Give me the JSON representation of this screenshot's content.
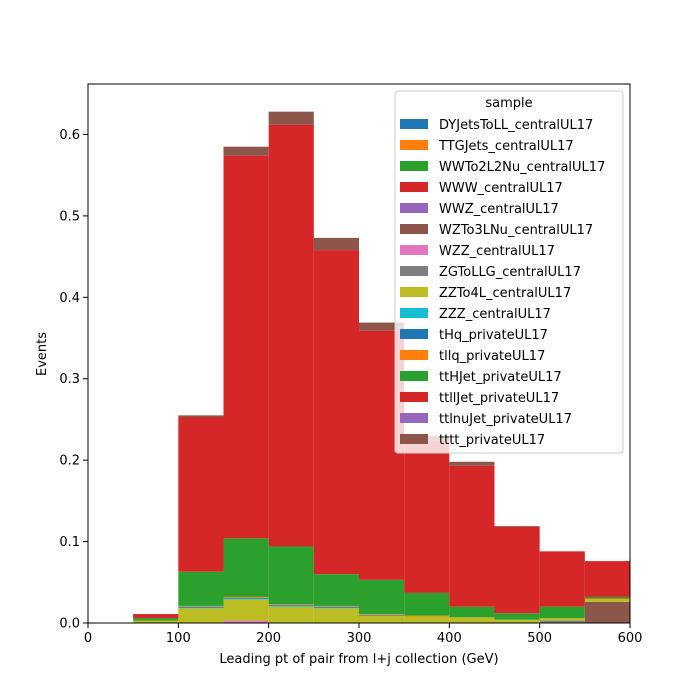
{
  "chart_data": {
    "type": "bar",
    "stacked": true,
    "histogram": true,
    "xlabel": "Leading pt of pair from l+j collection (GeV)",
    "ylabel": "Events",
    "xlim": [
      0,
      600
    ],
    "ylim": [
      0,
      0.662
    ],
    "xticks": [
      "0",
      "100",
      "200",
      "300",
      "400",
      "500",
      "600"
    ],
    "yticks": [
      "0.0",
      "0.1",
      "0.2",
      "0.3",
      "0.4",
      "0.5",
      "0.6"
    ],
    "grid": false,
    "legend_title": "sample",
    "legend_position": "top-right",
    "bin_edges": [
      50,
      100,
      150,
      200,
      250,
      300,
      350,
      400,
      450,
      500,
      550,
      600
    ],
    "series": [
      {
        "name": "DYJetsToLL_centralUL17",
        "color": "#1f77b4",
        "values": [
          0,
          0,
          0,
          0,
          0,
          0,
          0,
          0,
          0,
          0,
          0
        ]
      },
      {
        "name": "TTGJets_centralUL17",
        "color": "#ff7f0e",
        "values": [
          0,
          0,
          0,
          0,
          0,
          0,
          0,
          0,
          0,
          0,
          0
        ]
      },
      {
        "name": "WWTo2L2Nu_centralUL17",
        "color": "#2ca02c",
        "values": [
          0,
          0,
          0,
          0,
          0,
          0,
          0,
          0,
          0,
          0,
          0
        ]
      },
      {
        "name": "WWW_centralUL17",
        "color": "#d62728",
        "values": [
          0,
          0,
          0,
          0,
          0,
          0,
          0,
          0,
          0,
          0,
          0
        ]
      },
      {
        "name": "WWZ_centralUL17",
        "color": "#9467bd",
        "values": [
          0,
          0,
          0,
          0,
          0,
          0,
          0,
          0,
          0,
          0,
          0
        ]
      },
      {
        "name": "WZTo3LNu_centralUL17",
        "color": "#8c564b",
        "values": [
          0,
          0,
          0,
          0,
          0,
          0,
          0,
          0,
          0,
          0,
          0.026
        ]
      },
      {
        "name": "WZZ_centralUL17",
        "color": "#e377c2",
        "values": [
          0,
          0,
          0.003,
          0,
          0,
          0,
          0,
          0,
          0,
          0,
          0
        ]
      },
      {
        "name": "ZGToLLG_centralUL17",
        "color": "#7f7f7f",
        "values": [
          0,
          0,
          0,
          0,
          0,
          0,
          0,
          0,
          0,
          0.003,
          0
        ]
      },
      {
        "name": "ZZTo4L_centralUL17",
        "color": "#bcbd22",
        "values": [
          0.003,
          0.018,
          0.026,
          0.02,
          0.018,
          0.009,
          0.008,
          0.007,
          0.004,
          0.003,
          0.003
        ]
      },
      {
        "name": "ZZZ_centralUL17",
        "color": "#17becf",
        "values": [
          0,
          0.001,
          0.001,
          0.001,
          0.001,
          0,
          0,
          0,
          0,
          0,
          0
        ]
      },
      {
        "name": "tHq_privateUL17",
        "color": "#1f77b4",
        "values": [
          0,
          0.001,
          0.001,
          0.001,
          0.001,
          0.001,
          0,
          0,
          0,
          0,
          0
        ]
      },
      {
        "name": "tllq_privateUL17",
        "color": "#ff7f0e",
        "values": [
          0,
          0.001,
          0.001,
          0.001,
          0.001,
          0.001,
          0.001,
          0,
          0,
          0,
          0.001
        ]
      },
      {
        "name": "ttHJet_privateUL17",
        "color": "#2ca02c",
        "values": [
          0.003,
          0.042,
          0.072,
          0.071,
          0.039,
          0.042,
          0.028,
          0.013,
          0.008,
          0.014,
          0.002
        ]
      },
      {
        "name": "ttllJet_privateUL17",
        "color": "#d62728",
        "values": [
          0.005,
          0.19,
          0.47,
          0.518,
          0.398,
          0.306,
          0.187,
          0.173,
          0.106,
          0.068,
          0.044
        ]
      },
      {
        "name": "ttlnuJet_privateUL17",
        "color": "#9467bd",
        "values": [
          0,
          0,
          0,
          0,
          0,
          0,
          0,
          0,
          0,
          0,
          0
        ]
      },
      {
        "name": "tttt_privateUL17",
        "color": "#8c564b",
        "values": [
          0,
          0.002,
          0.011,
          0.016,
          0.015,
          0.01,
          0.006,
          0.005,
          0.001,
          0,
          0
        ]
      }
    ]
  }
}
